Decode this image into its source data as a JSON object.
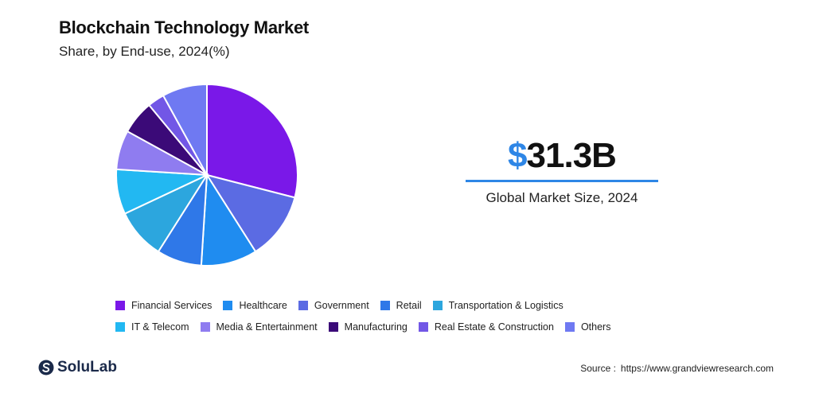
{
  "header": {
    "title": "Blockchain Technology Market",
    "subtitle": "Share, by End-use, 2024(%)"
  },
  "stat": {
    "currency": "$",
    "value": "31.3B",
    "label": "Global Market Size, 2024",
    "accent": "#2e86e6"
  },
  "chart_data": {
    "type": "pie",
    "title": "Blockchain Technology Market",
    "subtitle": "Share, by End-use, 2024(%)",
    "legend_position": "bottom",
    "slices": [
      {
        "name": "Financial Services",
        "value": 29,
        "color": "#7a18e8"
      },
      {
        "name": "Healthcare",
        "value": 10,
        "color": "#1f8cf0"
      },
      {
        "name": "Government",
        "value": 12,
        "color": "#5b6be3"
      },
      {
        "name": "Retail",
        "value": 8,
        "color": "#2f78e8"
      },
      {
        "name": "Transportation & Logistics",
        "value": 9,
        "color": "#2ca6de"
      },
      {
        "name": "IT & Telecom",
        "value": 8,
        "color": "#22b8f2"
      },
      {
        "name": "Media & Entertainment",
        "value": 7,
        "color": "#8f7cf0"
      },
      {
        "name": "Manufacturing",
        "value": 6,
        "color": "#3b0a78"
      },
      {
        "name": "Real Estate & Construction",
        "value": 3,
        "color": "#7257e6"
      },
      {
        "name": "Others",
        "value": 8,
        "color": "#6f79f2"
      }
    ],
    "draw_order": [
      "Financial Services",
      "Government",
      "Healthcare",
      "Retail",
      "Transportation & Logistics",
      "IT & Telecom",
      "Media & Entertainment",
      "Manufacturing",
      "Real Estate & Construction",
      "Others"
    ]
  },
  "legend": {
    "rows": [
      [
        "Financial Services",
        "Healthcare",
        "Government",
        "Retail",
        "Transportation & Logistics"
      ],
      [
        "IT & Telecom",
        "Media & Entertainment",
        "Manufacturing",
        "Real Estate & Construction",
        "Others"
      ]
    ]
  },
  "footer": {
    "brand": "SoluLab",
    "brand_color": "#1b2a4a",
    "logo_icon": "solulab-logo-icon",
    "source_label": "Source :",
    "source_url": "https://www.grandviewresearch.com"
  }
}
